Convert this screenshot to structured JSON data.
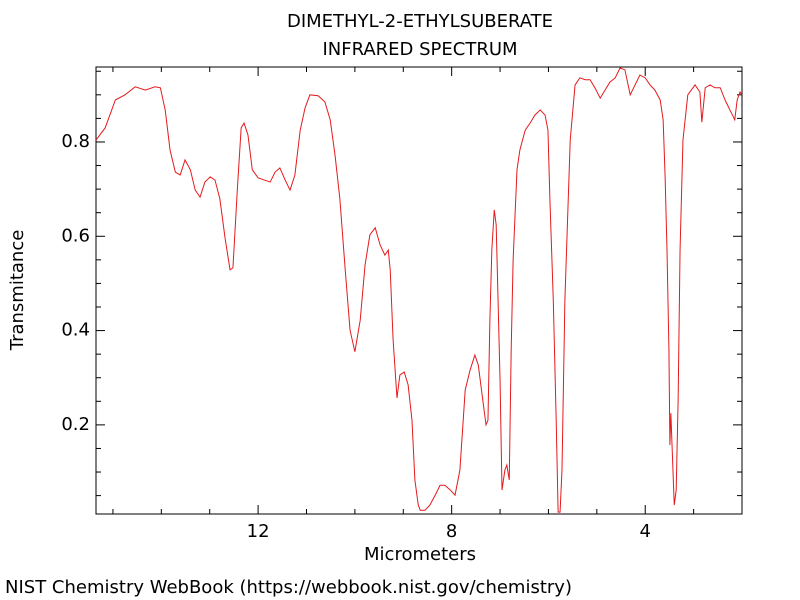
{
  "chart_data": {
    "type": "line",
    "title": "DIMETHYL-2-ETHYLSUBERATE",
    "subtitle": "INFRARED SPECTRUM",
    "x_label": "Micrometers",
    "y_label": "Transmitance",
    "footer": "NIST Chemistry WebBook (https://webbook.nist.gov/chemistry)",
    "color": "#e41a1c",
    "xlim": [
      15.35,
      2.0
    ],
    "ylim": [
      0.011,
      0.959
    ],
    "xticks": [
      12,
      8,
      4
    ],
    "yticks": [
      0.2,
      0.4,
      0.6,
      0.8
    ],
    "xminorticks": [
      15,
      14,
      13,
      11,
      10,
      9,
      7,
      6,
      5,
      3,
      2
    ],
    "yminorticks": [
      0.05,
      0.1,
      0.15,
      0.25,
      0.3,
      0.35,
      0.45,
      0.5,
      0.55,
      0.65,
      0.7,
      0.75,
      0.85,
      0.9,
      0.95
    ],
    "x": [
      15.35,
      15.16,
      14.95,
      14.75,
      14.54,
      14.33,
      14.13,
      14.02,
      13.92,
      13.82,
      13.71,
      13.61,
      13.51,
      13.4,
      13.3,
      13.2,
      13.1,
      12.99,
      12.89,
      12.79,
      12.68,
      12.58,
      12.52,
      12.43,
      12.35,
      12.29,
      12.21,
      12.12,
      12.0,
      11.86,
      11.75,
      11.65,
      11.55,
      11.44,
      11.34,
      11.24,
      11.13,
      11.03,
      10.93,
      10.76,
      10.62,
      10.51,
      10.41,
      10.31,
      10.2,
      10.1,
      10.0,
      9.89,
      9.79,
      9.69,
      9.58,
      9.48,
      9.38,
      9.31,
      9.27,
      9.21,
      9.13,
      9.07,
      8.98,
      8.9,
      8.82,
      8.76,
      8.69,
      8.65,
      8.55,
      8.45,
      8.34,
      8.24,
      8.14,
      8.03,
      7.93,
      7.83,
      7.72,
      7.62,
      7.52,
      7.45,
      7.37,
      7.29,
      7.25,
      7.21,
      7.17,
      7.12,
      7.08,
      7.0,
      6.96,
      6.9,
      6.86,
      6.81,
      6.77,
      6.73,
      6.65,
      6.59,
      6.48,
      6.38,
      6.28,
      6.17,
      6.07,
      6.01,
      5.97,
      5.9,
      5.84,
      5.8,
      5.76,
      5.72,
      5.66,
      5.55,
      5.45,
      5.35,
      5.24,
      5.14,
      5.04,
      4.93,
      4.83,
      4.73,
      4.62,
      4.52,
      4.42,
      4.31,
      4.21,
      4.11,
      4.0,
      3.9,
      3.8,
      3.69,
      3.63,
      3.59,
      3.55,
      3.51,
      3.49,
      3.47,
      3.45,
      3.4,
      3.36,
      3.32,
      3.28,
      3.22,
      3.12,
      2.97,
      2.87,
      2.83,
      2.76,
      2.66,
      2.56,
      2.45,
      2.35,
      2.25,
      2.15,
      2.1,
      2.04,
      2.0
    ],
    "values": [
      0.804,
      0.83,
      0.889,
      0.9,
      0.917,
      0.91,
      0.917,
      0.915,
      0.868,
      0.783,
      0.736,
      0.73,
      0.762,
      0.741,
      0.698,
      0.683,
      0.715,
      0.726,
      0.719,
      0.679,
      0.594,
      0.529,
      0.533,
      0.698,
      0.83,
      0.84,
      0.815,
      0.741,
      0.724,
      0.719,
      0.715,
      0.736,
      0.745,
      0.719,
      0.698,
      0.73,
      0.825,
      0.872,
      0.9,
      0.898,
      0.885,
      0.847,
      0.772,
      0.679,
      0.529,
      0.401,
      0.355,
      0.422,
      0.539,
      0.603,
      0.618,
      0.582,
      0.56,
      0.571,
      0.529,
      0.38,
      0.257,
      0.306,
      0.312,
      0.285,
      0.21,
      0.083,
      0.03,
      0.019,
      0.019,
      0.03,
      0.051,
      0.072,
      0.072,
      0.062,
      0.051,
      0.104,
      0.274,
      0.316,
      0.348,
      0.327,
      0.263,
      0.2,
      0.21,
      0.422,
      0.571,
      0.656,
      0.624,
      0.295,
      0.062,
      0.104,
      0.115,
      0.083,
      0.359,
      0.55,
      0.741,
      0.783,
      0.825,
      0.84,
      0.857,
      0.868,
      0.857,
      0.825,
      0.679,
      0.465,
      0.21,
      0.015,
      0.015,
      0.104,
      0.465,
      0.804,
      0.921,
      0.936,
      0.932,
      0.932,
      0.915,
      0.893,
      0.91,
      0.927,
      0.936,
      0.957,
      0.953,
      0.9,
      0.921,
      0.942,
      0.936,
      0.921,
      0.91,
      0.889,
      0.847,
      0.73,
      0.571,
      0.359,
      0.157,
      0.225,
      0.168,
      0.03,
      0.062,
      0.253,
      0.571,
      0.804,
      0.9,
      0.921,
      0.906,
      0.842,
      0.915,
      0.921,
      0.915,
      0.915,
      0.889,
      0.868,
      0.847,
      0.889,
      0.906,
      0.9
    ]
  }
}
